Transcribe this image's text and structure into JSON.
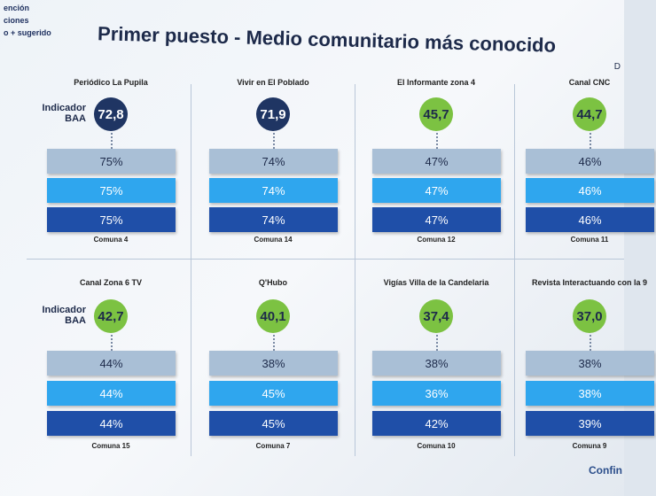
{
  "sidebar": [
    "ención",
    "ciones",
    "o + sugerido"
  ],
  "title": "Primer puesto - Medio comunitario más conocido",
  "corner": "D",
  "footer": "Confin",
  "cards": [
    {
      "name": "Periódico La Pupila",
      "indicator_label": "Indicador BAA",
      "indicator": "72,8",
      "bars": [
        "75%",
        "75%",
        "75%"
      ],
      "comuna": "Comuna 4"
    },
    {
      "name": "Vivir en El Poblado",
      "indicator": "71,9",
      "bars": [
        "74%",
        "74%",
        "74%"
      ],
      "comuna": "Comuna 14"
    },
    {
      "name": "El Informante zona 4",
      "indicator": "45,7",
      "bars": [
        "47%",
        "47%",
        "47%"
      ],
      "comuna": "Comuna 12"
    },
    {
      "name": "Canal CNC",
      "indicator": "44,7",
      "bars": [
        "46%",
        "46%",
        "46%"
      ],
      "comuna": "Comuna 11"
    },
    {
      "name": "Canal Zona 6 TV",
      "indicator_label": "Indicador BAA",
      "indicator": "42,7",
      "bars": [
        "44%",
        "44%",
        "44%"
      ],
      "comuna": "Comuna 15"
    },
    {
      "name": "Q'Hubo",
      "indicator": "40,1",
      "bars": [
        "38%",
        "45%",
        "45%"
      ],
      "comuna": "Comuna 7"
    },
    {
      "name": "Vigías Villa de la Candelaria",
      "indicator": "37,4",
      "bars": [
        "38%",
        "36%",
        "42%"
      ],
      "comuna": "Comuna 10"
    },
    {
      "name": "Revista Interactuando con la 9",
      "indicator": "37,0",
      "bars": [
        "38%",
        "38%",
        "39%"
      ],
      "comuna": "Comuna 9"
    }
  ]
}
